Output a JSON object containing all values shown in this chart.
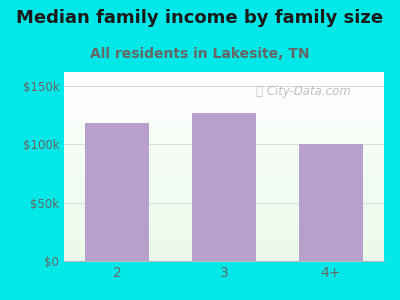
{
  "categories": [
    "2",
    "3",
    "4+"
  ],
  "values": [
    118000,
    127000,
    100000
  ],
  "bar_color": "#b8a0cc",
  "title": "Median family income by family size",
  "subtitle": "All residents in Lakesite, TN",
  "title_color": "#1a1a1a",
  "subtitle_color": "#666666",
  "background_color": "#00e8e8",
  "ytick_labels": [
    "$0",
    "$50k",
    "$100k",
    "$150k"
  ],
  "ytick_values": [
    0,
    50000,
    100000,
    150000
  ],
  "ylim": [
    0,
    162000
  ],
  "title_fontsize": 13,
  "subtitle_fontsize": 10,
  "tick_color": "#666666",
  "grid_color": "#dddddd",
  "watermark": "City-Data.com",
  "watermark_color": "#aaaaaa"
}
